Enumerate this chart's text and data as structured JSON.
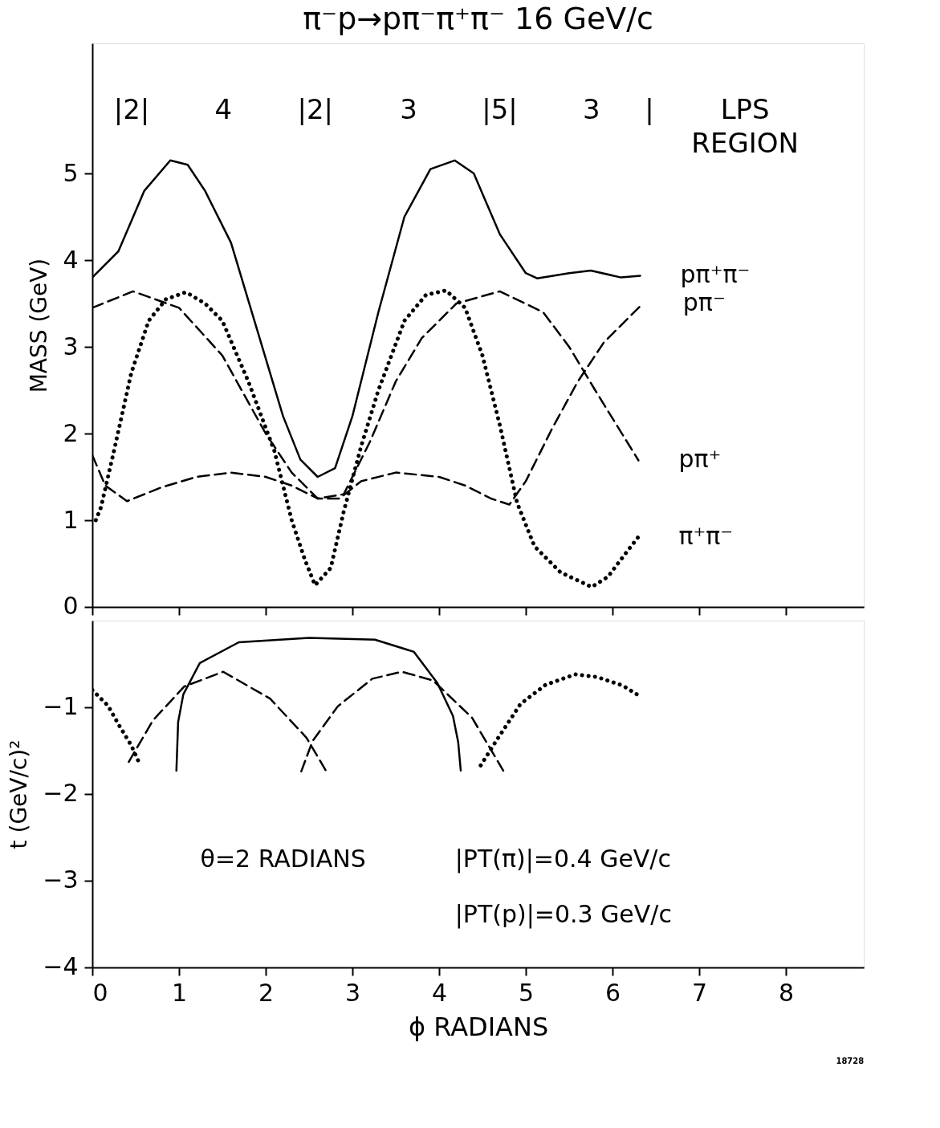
{
  "chart_data": [
    {
      "type": "line",
      "title": "π⁻p→pπ⁻π⁺π⁻   16 GeV/c",
      "ylabel": "MASS (GeV)",
      "xlim": [
        0,
        8.9
      ],
      "xticks": [
        0,
        1,
        2,
        3,
        4,
        5,
        6,
        7,
        8
      ],
      "ylim": [
        0,
        6.5
      ],
      "yticks": [
        0,
        1,
        2,
        3,
        4,
        5
      ],
      "tick_labels": "y",
      "grid": false,
      "marker": "none",
      "series": [
        {
          "name": "pπ⁺π⁻",
          "color": "#000000",
          "line_style": "solid",
          "x": [
            0,
            0.3,
            0.6,
            0.9,
            1.1,
            1.3,
            1.6,
            1.9,
            2.2,
            2.4,
            2.6,
            2.8,
            3.0,
            3.3,
            3.6,
            3.9,
            4.18,
            4.4,
            4.7,
            5.0,
            5.13,
            5.5,
            5.75,
            6.1,
            6.32
          ],
          "values": [
            3.8,
            4.1,
            4.8,
            5.15,
            5.1,
            4.8,
            4.2,
            3.2,
            2.2,
            1.7,
            1.5,
            1.6,
            2.2,
            3.4,
            4.5,
            5.05,
            5.15,
            5.0,
            4.3,
            3.85,
            3.79,
            3.85,
            3.88,
            3.8,
            3.82
          ]
        },
        {
          "name": "pπ⁻",
          "color": "#000000",
          "line_style": "dashed",
          "x": [
            0,
            0.15,
            0.4,
            0.8,
            1.2,
            1.6,
            2.0,
            2.3,
            2.6,
            2.85,
            3.1,
            3.5,
            4.0,
            4.3,
            4.6,
            4.81,
            5.0,
            5.3,
            5.6,
            5.9,
            6.35
          ],
          "values": [
            1.75,
            1.4,
            1.22,
            1.38,
            1.5,
            1.55,
            1.5,
            1.4,
            1.25,
            1.25,
            1.45,
            1.55,
            1.5,
            1.4,
            1.25,
            1.18,
            1.45,
            2.05,
            2.6,
            3.05,
            3.5
          ]
        },
        {
          "name": "pπ⁺",
          "color": "#000000",
          "line_style": "dashed",
          "x": [
            0,
            0.47,
            1.0,
            1.5,
            2.0,
            2.3,
            2.6,
            2.9,
            3.2,
            3.5,
            3.8,
            4.2,
            4.7,
            5.2,
            5.5,
            5.8,
            6.3
          ],
          "values": [
            3.45,
            3.64,
            3.45,
            2.9,
            2.0,
            1.55,
            1.25,
            1.3,
            1.9,
            2.6,
            3.1,
            3.5,
            3.64,
            3.4,
            3.0,
            2.5,
            1.69
          ]
        },
        {
          "name": "π⁺π⁻",
          "color": "#000000",
          "line_style": "dotted",
          "x": [
            0.04,
            0.1,
            0.25,
            0.45,
            0.65,
            0.85,
            1.08,
            1.3,
            1.5,
            1.8,
            2.1,
            2.3,
            2.45,
            2.57,
            2.75,
            2.9,
            3.1,
            3.3,
            3.6,
            3.85,
            4.08,
            4.3,
            4.5,
            4.7,
            4.9,
            5.1,
            5.4,
            5.76,
            5.95,
            6.1,
            6.3
          ],
          "values": [
            1.0,
            1.15,
            1.8,
            2.7,
            3.3,
            3.55,
            3.63,
            3.5,
            3.3,
            2.6,
            1.8,
            1.0,
            0.55,
            0.25,
            0.45,
            1.1,
            1.85,
            2.5,
            3.3,
            3.6,
            3.65,
            3.45,
            2.9,
            2.1,
            1.2,
            0.7,
            0.4,
            0.23,
            0.35,
            0.55,
            0.81
          ]
        }
      ],
      "legend": false,
      "annotations": [
        "|2|",
        "4",
        "|2|",
        "3",
        "|5|",
        "3",
        "|",
        "LPS\nREGION"
      ]
    },
    {
      "type": "line",
      "ylabel": "t (GeV/c)²",
      "xlabel": "ϕ RADIANS",
      "xlim": [
        0,
        8.9
      ],
      "xticks": [
        0,
        1,
        2,
        3,
        4,
        5,
        6,
        7,
        8
      ],
      "ylim": [
        -4,
        0
      ],
      "yticks": [
        -4,
        -3,
        -2,
        -1
      ],
      "grid": false,
      "legend": false,
      "marker": "none",
      "series": [
        {
          "color": "#000000",
          "line_style": "dotted",
          "x": [
            0,
            0.18,
            0.31,
            0.45,
            0.54,
            2.5,
            4.48,
            4.67,
            4.94,
            5.23,
            5.57,
            5.82,
            6.12,
            6.28
          ],
          "values": [
            -0.8,
            -0.98,
            -1.21,
            -1.44,
            -1.64,
            null,
            -1.67,
            -1.37,
            -0.96,
            -0.74,
            -0.62,
            -0.65,
            -0.75,
            -0.85
          ]
        },
        {
          "color": "#000000",
          "line_style": "dashed",
          "x": [
            0.42,
            0.7,
            1.06,
            1.51,
            2.05,
            2.47,
            2.7
          ],
          "values": [
            -1.63,
            -1.15,
            -0.76,
            -0.59,
            -0.9,
            -1.35,
            -1.74
          ]
        },
        {
          "color": "#000000",
          "line_style": "solid",
          "x": [
            0.97,
            0.99,
            1.05,
            1.24,
            1.69,
            2.5,
            3.26,
            3.71,
            3.98,
            4.16,
            4.22,
            4.25
          ],
          "values": [
            -1.73,
            -1.17,
            -0.85,
            -0.49,
            -0.25,
            -0.2,
            -0.22,
            -0.36,
            -0.72,
            -1.1,
            -1.4,
            -1.73
          ]
        },
        {
          "color": "#000000",
          "line_style": "dashed",
          "x": [
            2.41,
            2.54,
            2.83,
            3.23,
            3.57,
            3.93,
            4.38,
            4.74
          ],
          "values": [
            -1.74,
            -1.39,
            -0.99,
            -0.67,
            -0.59,
            -0.69,
            -1.12,
            -1.73
          ]
        }
      ],
      "annotations": [
        "θ=2 RADIANS",
        "|PT(π)|=0.4 GeV/c",
        "|PT(p)|=0.3 GeV/c",
        "18728"
      ]
    }
  ]
}
